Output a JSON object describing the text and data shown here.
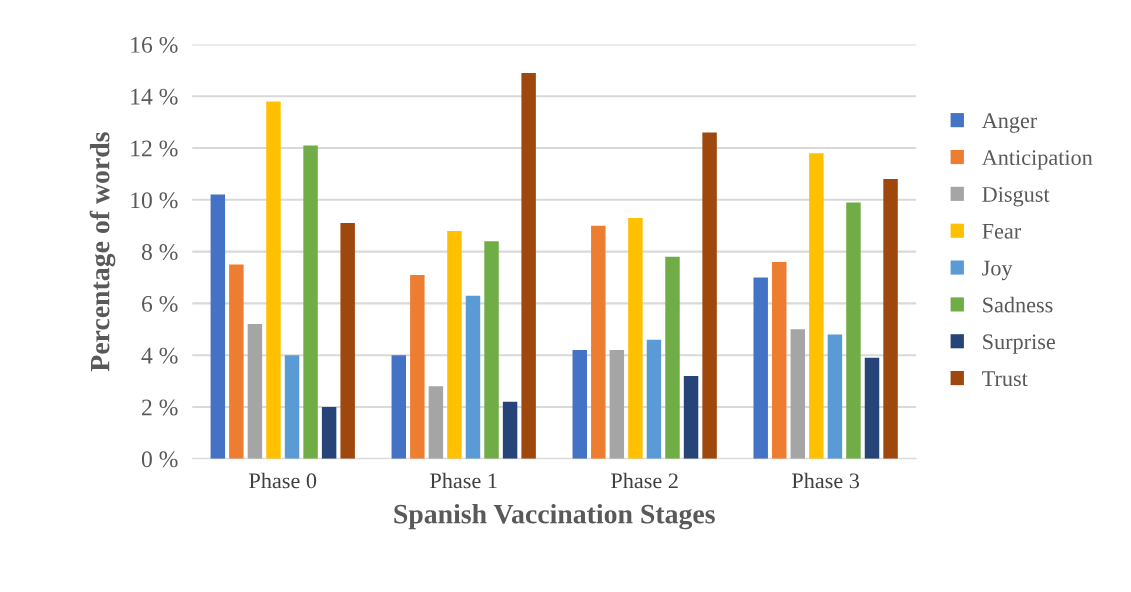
{
  "chart_data": {
    "type": "bar",
    "xlabel": "Spanish Vaccination Stages",
    "ylabel": "Percentage of words",
    "categories": [
      "Phase 0",
      "Phase 1",
      "Phase 2",
      "Phase 3"
    ],
    "series": [
      {
        "name": "Anger",
        "color": "#4472c4",
        "values": [
          10.2,
          4.0,
          4.2,
          7.0
        ]
      },
      {
        "name": "Anticipation",
        "color": "#ed7d31",
        "values": [
          7.5,
          7.1,
          9.0,
          7.6
        ]
      },
      {
        "name": "Disgust",
        "color": "#a5a5a5",
        "values": [
          5.2,
          2.8,
          4.2,
          5.0
        ]
      },
      {
        "name": "Fear",
        "color": "#ffc000",
        "values": [
          13.8,
          8.8,
          9.3,
          11.8
        ]
      },
      {
        "name": "Joy",
        "color": "#5b9bd5",
        "values": [
          4.0,
          6.3,
          4.6,
          4.8
        ]
      },
      {
        "name": "Sadness",
        "color": "#70ad47",
        "values": [
          12.1,
          8.4,
          7.8,
          9.9
        ]
      },
      {
        "name": "Surprise",
        "color": "#264478",
        "values": [
          2.0,
          2.2,
          3.2,
          3.9
        ]
      },
      {
        "name": "Trust",
        "color": "#9e480e",
        "values": [
          9.1,
          14.9,
          12.6,
          10.8
        ]
      }
    ],
    "ylim": [
      0,
      16
    ],
    "yticks": [
      {
        "value": 0,
        "label": "0 %"
      },
      {
        "value": 2,
        "label": "2 %"
      },
      {
        "value": 4,
        "label": "4 %"
      },
      {
        "value": 6,
        "label": "6 %"
      },
      {
        "value": 8,
        "label": "8 %"
      },
      {
        "value": 10,
        "label": "10 %"
      },
      {
        "value": 12,
        "label": "12 %"
      },
      {
        "value": 14,
        "label": "14 %"
      },
      {
        "value": 16,
        "label": "16 %"
      }
    ],
    "grid": "y",
    "legend": "right"
  }
}
